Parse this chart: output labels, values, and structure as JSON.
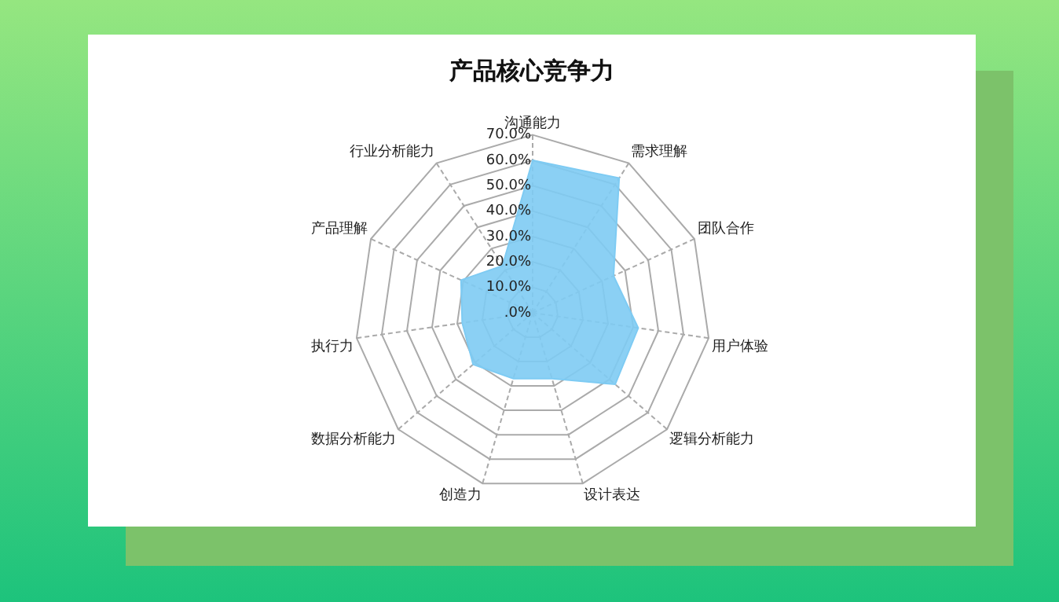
{
  "chart_data": {
    "type": "radar",
    "title": "产品核心竞争力",
    "categories": [
      "沟通能力",
      "需求理解",
      "团队合作",
      "用户体验",
      "逻辑分析能力",
      "设计表达",
      "创造力",
      "数据分析能力",
      "执行力",
      "产品理解",
      "行业分析能力"
    ],
    "series": [
      {
        "color": "#7ecbf3",
        "values": [
          60,
          63,
          35,
          42,
          43,
          27,
          27,
          31,
          28,
          31,
          22
        ]
      }
    ],
    "ylim": [
      0,
      70
    ],
    "yticks": [
      {
        "value": 0,
        "label": ".0%"
      },
      {
        "value": 10,
        "label": "10.0%"
      },
      {
        "value": 20,
        "label": "20.0%"
      },
      {
        "value": 30,
        "label": "30.0%"
      },
      {
        "value": 40,
        "label": "40.0%"
      },
      {
        "value": 50,
        "label": "50.0%"
      },
      {
        "value": 60,
        "label": "60.0%"
      },
      {
        "value": 70,
        "label": "70.0%"
      }
    ],
    "grid": true,
    "legend": false
  }
}
